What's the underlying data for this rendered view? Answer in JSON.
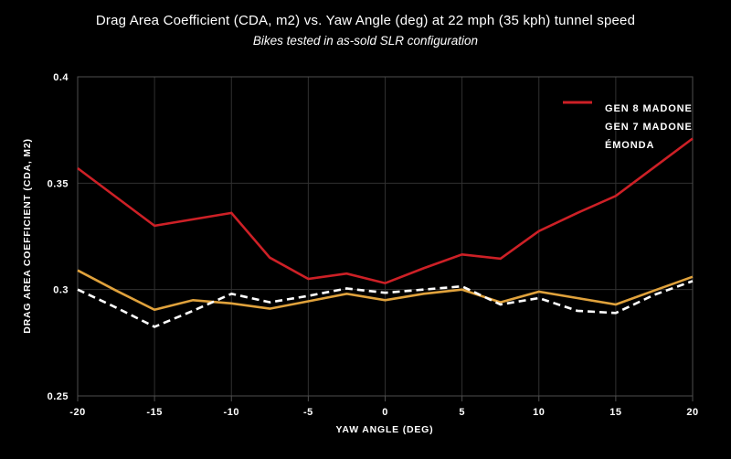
{
  "chart_data": {
    "type": "line",
    "title": "Drag Area Coefficient (CDA, m2) vs. Yaw Angle (deg) at 22 mph (35 kph) tunnel speed",
    "subtitle": "Bikes tested in as-sold SLR configuration",
    "xlabel": "YAW ANGLE (DEG)",
    "ylabel": "DRAG AREA COEFFICIENT (CDA, M2)",
    "xlim": [
      -20,
      20
    ],
    "ylim": [
      0.25,
      0.4
    ],
    "xticks": [
      -20,
      -15,
      -10,
      -5,
      0,
      5,
      10,
      15,
      20
    ],
    "xtick_labels": [
      "-20",
      "-15",
      "-10",
      "-5",
      "0",
      "5",
      "10",
      "15",
      "20"
    ],
    "yticks": [
      0.25,
      0.3,
      0.35,
      0.4
    ],
    "ytick_labels": [
      "0.25",
      "0.3",
      "0.35",
      "0.4"
    ],
    "grid": true,
    "legend_position": "top-right",
    "x": [
      -20,
      -17.5,
      -15,
      -12.5,
      -10,
      -7.5,
      -5,
      -2.5,
      0,
      2.5,
      5,
      7.5,
      10,
      12.5,
      15,
      17.5,
      20
    ],
    "series": [
      {
        "name": "GEN 8 MADONE",
        "color": "#E0A23C",
        "style": "solid",
        "values": [
          0.309,
          0.2995,
          0.2905,
          0.295,
          0.2935,
          0.291,
          0.2945,
          0.298,
          0.295,
          0.298,
          0.3,
          0.294,
          0.299,
          0.296,
          0.293,
          0.2995,
          0.306
        ]
      },
      {
        "name": "GEN 7 MADONE",
        "color": "#FFFFFF",
        "style": "dashed",
        "values": [
          0.3,
          0.2915,
          0.2825,
          0.29,
          0.298,
          0.294,
          0.297,
          0.3005,
          0.2985,
          0.3,
          0.3015,
          0.293,
          0.296,
          0.29,
          0.289,
          0.2975,
          0.304
        ]
      },
      {
        "name": "ÉMONDA",
        "color": "#CD2026",
        "style": "solid",
        "values": [
          0.357,
          0.3435,
          0.33,
          0.333,
          0.336,
          0.315,
          0.305,
          0.3075,
          0.303,
          0.31,
          0.3165,
          0.3145,
          0.3275,
          0.336,
          0.344,
          0.3575,
          0.371
        ]
      }
    ]
  },
  "colors": {
    "background": "#000000",
    "text": "#FFFFFF",
    "grid": "#303030",
    "frame": "#4E4E4E"
  }
}
